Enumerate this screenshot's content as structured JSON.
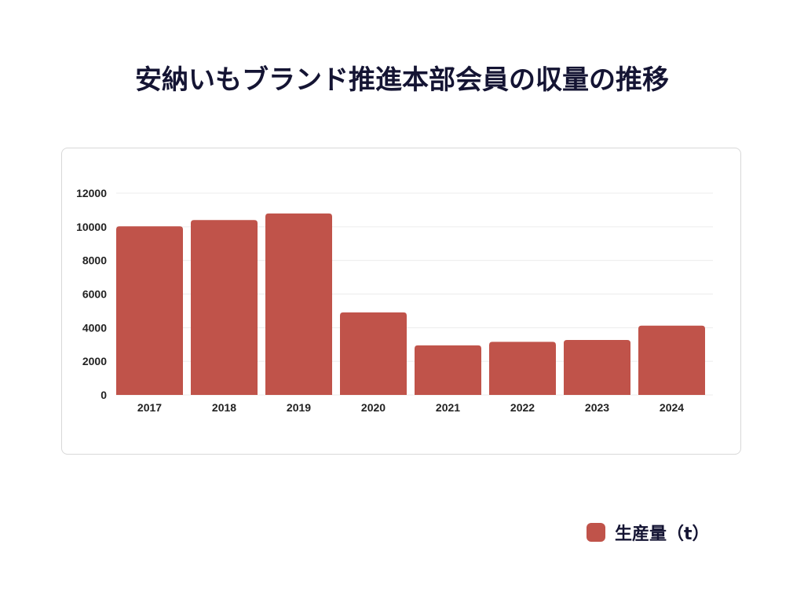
{
  "chart_data": {
    "type": "bar",
    "title": "安納いもブランド推進本部会員の収量の推移",
    "categories": [
      "2017",
      "2018",
      "2019",
      "2020",
      "2021",
      "2022",
      "2023",
      "2024"
    ],
    "series": [
      {
        "name": "生産量（t）",
        "values": [
          10030,
          10400,
          10790,
          4910,
          2950,
          3160,
          3270,
          4120
        ],
        "color": "#c0534a"
      }
    ],
    "yticks": [
      "0",
      "2000",
      "4000",
      "6000",
      "8000",
      "10000",
      "12000"
    ],
    "ylim": [
      0,
      12000
    ],
    "xlabel": "",
    "ylabel": "",
    "grid": true,
    "legend_position": "bottom-right"
  }
}
